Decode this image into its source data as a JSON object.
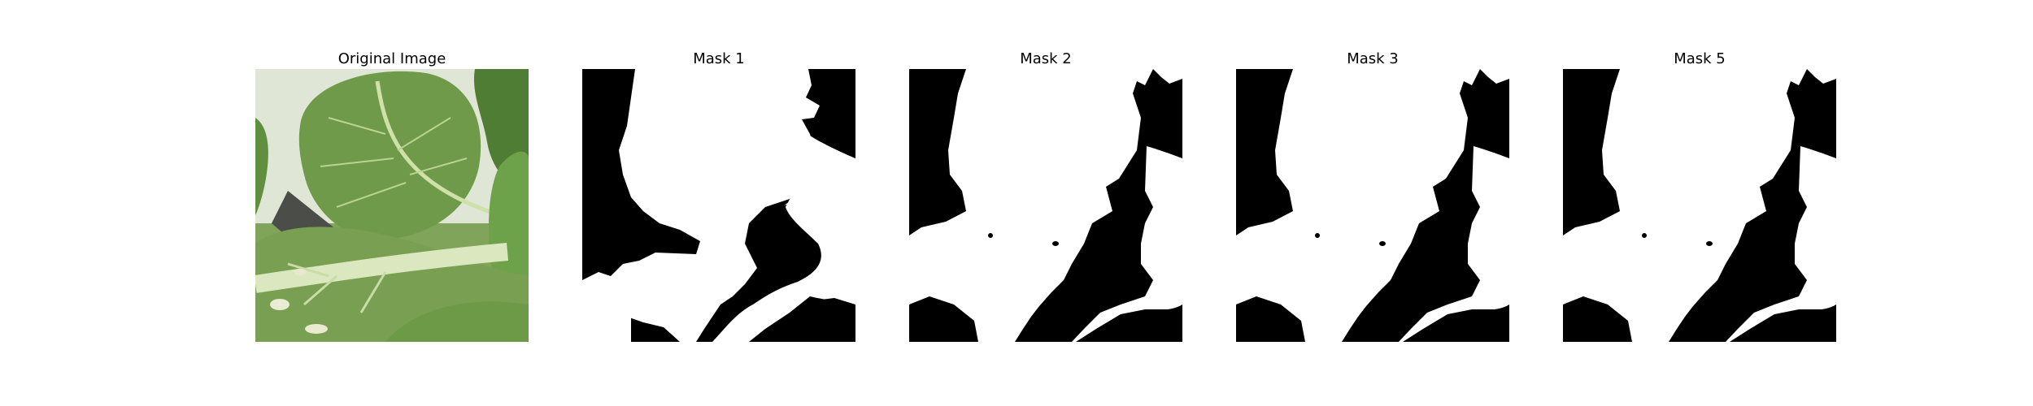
{
  "panels": [
    {
      "title": "Original Image"
    },
    {
      "title": "Mask 1"
    },
    {
      "title": "Mask 2"
    },
    {
      "title": "Mask 3"
    },
    {
      "title": "Mask 5"
    }
  ],
  "colors": {
    "background": "#ffffff",
    "mask_foreground": "#ffffff",
    "mask_background": "#000000",
    "leaf_green": "#6f9a4e",
    "stem_pale_green": "#d8e5ba"
  }
}
